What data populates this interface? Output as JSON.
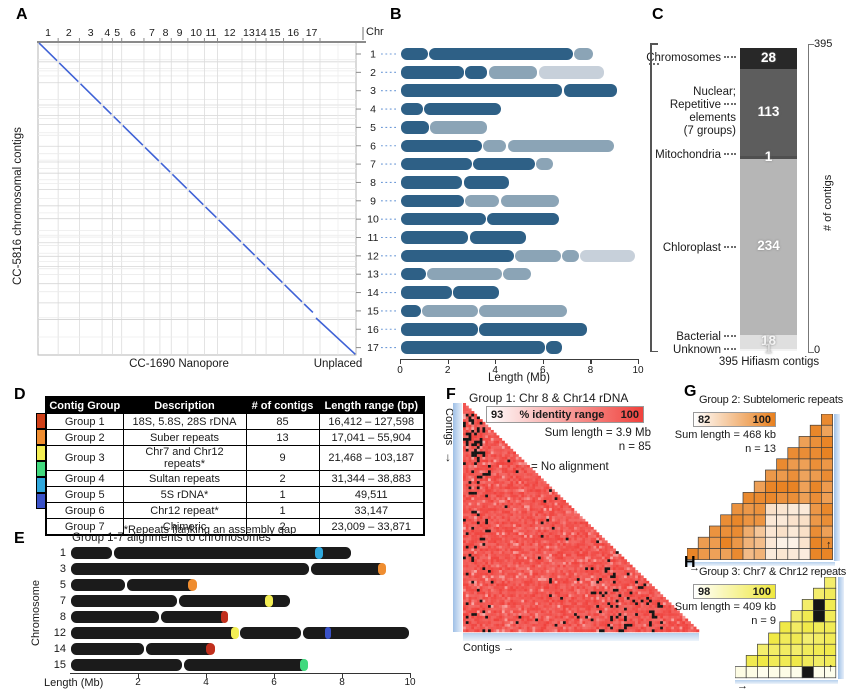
{
  "panelA": {
    "label": "A",
    "ylabel": "CC-5816 chromosomal contigs",
    "xlabel": "CC-1690 Nanopore",
    "xlabel_unplaced": "Unplaced",
    "chromosome_ticks": [
      "1",
      "2",
      "3",
      "4",
      "5",
      "6",
      "7",
      "8",
      "9",
      "10",
      "11",
      "12",
      "13",
      "14",
      "15",
      "16",
      "17"
    ],
    "diagonal_color": "#3f62d6"
  },
  "panelB": {
    "label": "B",
    "axis_title": "Chr",
    "xlabel": "Length (Mb)",
    "x_ticks": [
      "0",
      "2",
      "4",
      "6",
      "8",
      "10"
    ],
    "xlim": [
      0,
      10
    ],
    "shade_colors": {
      "d": "#2e6086",
      "m": "#8ba4b6",
      "l": "#c7d0da"
    },
    "chromosomes": [
      {
        "chr": "1",
        "segments": [
          [
            0,
            1.2,
            "d"
          ],
          [
            1.2,
            7.3,
            "d"
          ],
          [
            7.3,
            8.15,
            "m"
          ]
        ]
      },
      {
        "chr": "2",
        "segments": [
          [
            0,
            2.7,
            "d"
          ],
          [
            2.7,
            3.7,
            "d"
          ],
          [
            3.7,
            5.8,
            "m"
          ],
          [
            5.8,
            8.6,
            "l"
          ]
        ]
      },
      {
        "chr": "3",
        "segments": [
          [
            0,
            6.85,
            "d"
          ],
          [
            6.85,
            9.15,
            "d"
          ]
        ]
      },
      {
        "chr": "4",
        "segments": [
          [
            0,
            1.0,
            "d"
          ],
          [
            1.0,
            4.25,
            "d"
          ]
        ]
      },
      {
        "chr": "5",
        "segments": [
          [
            0,
            1.25,
            "d"
          ],
          [
            1.25,
            3.7,
            "m"
          ]
        ]
      },
      {
        "chr": "6",
        "segments": [
          [
            0,
            3.45,
            "d"
          ],
          [
            3.45,
            4.5,
            "m"
          ],
          [
            4.5,
            9.0,
            "m"
          ]
        ]
      },
      {
        "chr": "7",
        "segments": [
          [
            0,
            3.05,
            "d"
          ],
          [
            3.05,
            5.7,
            "d"
          ],
          [
            5.7,
            6.45,
            "m"
          ]
        ]
      },
      {
        "chr": "8",
        "segments": [
          [
            0,
            2.65,
            "d"
          ],
          [
            2.65,
            4.6,
            "d"
          ]
        ]
      },
      {
        "chr": "9",
        "segments": [
          [
            0,
            2.7,
            "d"
          ],
          [
            2.7,
            4.2,
            "m"
          ],
          [
            4.2,
            6.7,
            "m"
          ]
        ]
      },
      {
        "chr": "10",
        "segments": [
          [
            0,
            3.65,
            "d"
          ],
          [
            3.65,
            6.7,
            "d"
          ]
        ]
      },
      {
        "chr": "11",
        "segments": [
          [
            0,
            2.9,
            "d"
          ],
          [
            2.9,
            5.3,
            "d"
          ]
        ]
      },
      {
        "chr": "12",
        "segments": [
          [
            0,
            4.8,
            "d"
          ],
          [
            4.8,
            6.8,
            "m"
          ],
          [
            6.8,
            7.55,
            "m"
          ],
          [
            7.55,
            9.9,
            "l"
          ]
        ]
      },
      {
        "chr": "13",
        "segments": [
          [
            0,
            1.1,
            "d"
          ],
          [
            1.1,
            4.3,
            "m"
          ],
          [
            4.3,
            5.55,
            "m"
          ]
        ]
      },
      {
        "chr": "14",
        "segments": [
          [
            0,
            2.2,
            "d"
          ],
          [
            2.2,
            4.2,
            "d"
          ]
        ]
      },
      {
        "chr": "15",
        "segments": [
          [
            0,
            0.9,
            "d"
          ],
          [
            0.9,
            3.3,
            "m"
          ],
          [
            3.3,
            7.05,
            "m"
          ]
        ]
      },
      {
        "chr": "16",
        "segments": [
          [
            0,
            3.3,
            "d"
          ],
          [
            3.3,
            7.9,
            "d"
          ]
        ]
      },
      {
        "chr": "17",
        "segments": [
          [
            0,
            6.1,
            "d"
          ],
          [
            6.1,
            6.85,
            "d"
          ]
        ]
      }
    ]
  },
  "panelC": {
    "label": "C",
    "caption": "395 Hifiasm contigs",
    "axis_title": "# of contigs",
    "axis_top": "395",
    "axis_bottom": "0",
    "segments": [
      {
        "name_lines": [
          "Chromosomes"
        ],
        "leading_dots": true,
        "dots_line": 0,
        "count": 28,
        "color": "#282828",
        "text_color": "#ffffff"
      },
      {
        "name_lines": [
          "Nuclear;",
          "Repetitive",
          "elements",
          "(7 groups)"
        ],
        "dots_line": 1,
        "count": 113,
        "color": "#5d5d5d",
        "text_color": "#ffffff"
      },
      {
        "name_lines": [
          "Mitochondria"
        ],
        "dots_line": 0,
        "count": 1,
        "color": "#4f4f4f",
        "text_color": "#ffffff"
      },
      {
        "name_lines": [
          "Chloroplast"
        ],
        "dots_line": 0,
        "count": 234,
        "color": "#b6b6b6",
        "text_color": "#ffffff"
      },
      {
        "name_lines": [
          "Bacterial"
        ],
        "dots_line": 0,
        "count": 18,
        "color": "#dfdfdf",
        "text_color": "#f5f5f5"
      },
      {
        "name_lines": [
          "Unknown"
        ],
        "dots_line": 0,
        "count": 1,
        "color": "#f3f3f3",
        "text_color": "#dcdcdc"
      }
    ]
  },
  "panelD": {
    "label": "D",
    "headers": [
      "Contig Group",
      "Description",
      "# of contigs",
      "Length range (bp)"
    ],
    "rows": [
      {
        "color": "#d04018",
        "group": "Group 1",
        "description": "18S, 5.8S, 28S rDNA",
        "count": "85",
        "range": "16,412 – 127,598"
      },
      {
        "color": "#ef8d30",
        "group": "Group 2",
        "description": "Suber repeats",
        "count": "13",
        "range": "17,041 – 55,904"
      },
      {
        "color": "#f3ee54",
        "group": "Group 3",
        "description": "Chr7 and Chr12 repeats*",
        "count": "9",
        "range": "21,468 – 103,187"
      },
      {
        "color": "#41d97e",
        "group": "Group 4",
        "description": "Sultan repeats",
        "count": "2",
        "range": "31,344 – 38,883"
      },
      {
        "color": "#2fa8dd",
        "group": "Group 5",
        "description": "5S rDNA*",
        "count": "1",
        "range": "49,511"
      },
      {
        "color": "#3a52c8",
        "group": "Group 6",
        "description": "Chr12 repeat*",
        "count": "1",
        "range": "33,147"
      },
      {
        "color": null,
        "group": "Group 7",
        "description": "Chimeric",
        "count": "2",
        "range": "23,009 – 33,871"
      }
    ],
    "footnote": "*Repeats flanking an assembly gap"
  },
  "panelE": {
    "label": "E",
    "title": "Group 1-7 alignments to chromosomes",
    "ylabel": "Chromosome",
    "xlabel": "Length (Mb)",
    "x_ticks": [
      "2",
      "4",
      "6",
      "8",
      "10"
    ],
    "xlim": [
      0,
      10
    ],
    "bar_color": "#1b1b1b",
    "rows": [
      {
        "chr": "1",
        "length": 8.3,
        "notches": [
          1.26
        ],
        "marks": [
          {
            "start": 7.2,
            "end": 7.45,
            "color": "#2fa8dd"
          }
        ]
      },
      {
        "chr": "3",
        "length": 9.3,
        "notches": [
          7.05
        ],
        "marks": [
          {
            "start": 9.05,
            "end": 9.3,
            "color": "#ef8d30"
          }
        ]
      },
      {
        "chr": "5",
        "length": 3.74,
        "notches": [
          1.65
        ],
        "marks": [
          {
            "start": 3.47,
            "end": 3.74,
            "color": "#ef8d30"
          }
        ]
      },
      {
        "chr": "7",
        "length": 6.5,
        "notches": [
          3.18
        ],
        "marks": [
          {
            "start": 5.74,
            "end": 5.97,
            "color": "#f3ee54"
          }
        ]
      },
      {
        "chr": "8",
        "length": 4.65,
        "notches": [
          2.65
        ],
        "marks": [
          {
            "start": 4.43,
            "end": 4.65,
            "color": "#c12f1d"
          }
        ]
      },
      {
        "chr": "12",
        "length": 10.0,
        "notches": [
          4.97,
          6.83
        ],
        "marks": [
          {
            "start": 4.74,
            "end": 4.97,
            "color": "#f3ee54"
          },
          {
            "start": 7.5,
            "end": 7.68,
            "color": "#3a52c8"
          }
        ]
      },
      {
        "chr": "14",
        "length": 4.26,
        "notches": [
          2.2
        ],
        "marks": [
          {
            "start": 4.0,
            "end": 4.26,
            "color": "#c12f1d"
          }
        ]
      },
      {
        "chr": "15",
        "length": 7.0,
        "notches": [
          3.32
        ],
        "marks": [
          {
            "start": 6.76,
            "end": 7.0,
            "color": "#41d97e"
          }
        ]
      }
    ]
  },
  "panelF": {
    "label": "F",
    "title": "Group 1: Chr 8 & Chr14 rDNA",
    "scale_min": "93",
    "scale_label": "% identity range",
    "scale_max": "100",
    "scale_color": "#f0413c",
    "sum_length": "Sum length = 3.9 Mb",
    "n_label": "n = 85",
    "n": 85,
    "no_alignment_label": "= No alignment",
    "black_color": "#161616",
    "row_axis_label": "Contigs",
    "row_axis_arrow": "↓",
    "col_axis_label": "Contigs →",
    "seed": 11
  },
  "panelG": {
    "label": "G",
    "title": "Group 2: Subtelomeric repeats",
    "scale_min": "82",
    "scale_max": "100",
    "scale_color": "#e8801e",
    "sum_length": "Sum length = 468 kb",
    "n_label": "n = 13",
    "n": 13,
    "arrow_bottom": "→",
    "arrow_right": "↑",
    "light_block": {
      "col_min": 8,
      "col_max": 11,
      "row_max": 5
    },
    "medium_block": {
      "col_min": 6,
      "col_max": 7,
      "row_max": 3
    },
    "seed": 4
  },
  "panelH": {
    "label": "H",
    "title": "Group 3: Chr7 & Chr12 repeats",
    "scale_min": "98",
    "scale_max": "100",
    "scale_color": "#efe83e",
    "sum_length": "Sum length = 409 kb",
    "n_label": "n = 9",
    "n": 9,
    "arrow_bottom": "→",
    "arrow_right": "↑",
    "light_rows": 1,
    "no_alignment_cells": [
      [
        8,
        7
      ],
      [
        8,
        6
      ],
      [
        7,
        1
      ]
    ],
    "seed": 9
  }
}
